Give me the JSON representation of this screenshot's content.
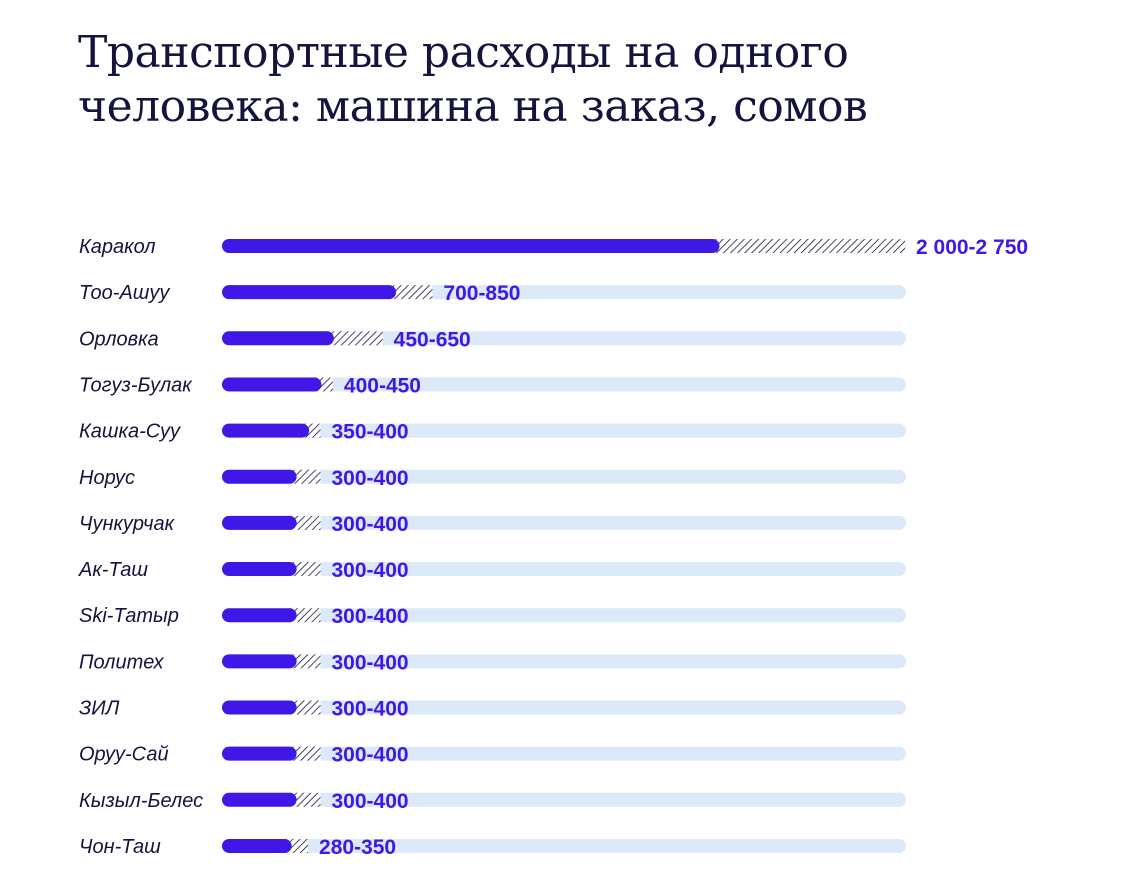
{
  "title_lines": [
    "Транспортные расходы на одного",
    "человека: машина на заказ, сомов"
  ],
  "colors": {
    "bar": "#3f17e6",
    "track": "#dbe9f8",
    "title": "#14143c",
    "hatch": "#14143c"
  },
  "chart_data": {
    "type": "bar",
    "orientation": "horizontal",
    "title": "Транспортные расходы на одного человека: машина на заказ, сомов",
    "xlim": [
      0,
      2750
    ],
    "grid": false,
    "categories": [
      "Каракол",
      "Тоо-Ашуу",
      "Орловка",
      "Тогуз-Булак",
      "Кашка-Суу",
      "Норус",
      "Чункурчак",
      "Ак-Таш",
      "Ski-Татыр",
      "Политех",
      "ЗИЛ",
      "Оруу-Сай",
      "Кызыл-Белес",
      "Чон-Таш"
    ],
    "min_values": [
      2000,
      700,
      450,
      400,
      350,
      300,
      300,
      300,
      300,
      300,
      300,
      300,
      300,
      280
    ],
    "max_values": [
      2750,
      850,
      650,
      450,
      400,
      400,
      400,
      400,
      400,
      400,
      400,
      400,
      400,
      350
    ],
    "value_labels": [
      "2 000-2 750",
      "700-850",
      "450-650",
      "400-450",
      "350-400",
      "300-400",
      "300-400",
      "300-400",
      "300-400",
      "300-400",
      "300-400",
      "300-400",
      "300-400",
      "280-350"
    ]
  }
}
